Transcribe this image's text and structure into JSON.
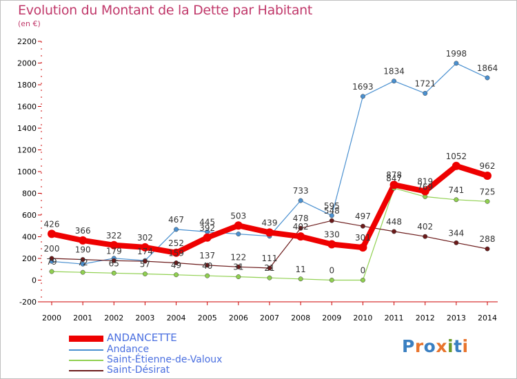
{
  "header": {
    "title": "Evolution du Montant de la Dette par Habitant",
    "subtitle": "(en €)"
  },
  "logo": {
    "text": "Proxiti",
    "colors": [
      "#3a7fc1",
      "#e8742c",
      "#3a7fc1",
      "#e8742c",
      "#6b9a2a",
      "#3a7fc1",
      "#e8742c"
    ]
  },
  "chart_data": {
    "type": "line",
    "title": "Evolution du Montant de la Dette par Habitant",
    "ylabel": "(en €)",
    "xlabel": "",
    "x": [
      "2000",
      "2001",
      "2002",
      "2003",
      "2004",
      "2005",
      "2006",
      "2007",
      "2008",
      "2009",
      "2010",
      "2011",
      "2012",
      "2013",
      "2014"
    ],
    "ylim": [
      -200,
      2200
    ],
    "yticks": [
      -200,
      0,
      200,
      400,
      600,
      800,
      1000,
      1200,
      1400,
      1600,
      1800,
      2000,
      2200
    ],
    "grid": false,
    "legend_position": "bottom-left",
    "series": [
      {
        "name": "ANDANCETTE",
        "color": "#ee0000",
        "values": [
          426,
          366,
          322,
          302,
          252,
          392,
          503,
          439,
          402,
          330,
          301,
          878,
          819,
          1052,
          962
        ],
        "labels": [
          "426",
          "366",
          "322",
          "302",
          "252",
          "392",
          "503",
          "439",
          "402",
          "330",
          "301",
          "878",
          "819",
          "1052",
          "962"
        ]
      },
      {
        "name": "Andance",
        "color": "#4a90d0",
        "values": [
          173,
          148,
          201,
          180,
          467,
          445,
          425,
          405,
          733,
          595,
          1693,
          1834,
          1721,
          1998,
          1864
        ],
        "labels": [
          "",
          "",
          "",
          "",
          "467",
          "445",
          "",
          "",
          "733",
          "595",
          "1693",
          "1834",
          "1721",
          "1998",
          "1864"
        ]
      },
      {
        "name": "Saint-Étienne-de-Valoux",
        "color": "#90d050",
        "values": [
          79,
          72,
          65,
          57,
          49,
          40,
          31,
          21,
          11,
          0,
          0,
          847,
          769,
          741,
          725
        ],
        "labels": [
          "79",
          "72",
          "65",
          "57",
          "49",
          "40",
          "31",
          "21",
          "11",
          "0",
          "0",
          "847",
          "769",
          "741",
          "725"
        ]
      },
      {
        "name": "Saint-Désirat",
        "color": "#6b1a1a",
        "values": [
          200,
          190,
          179,
          174,
          159,
          137,
          122,
          111,
          478,
          548,
          497,
          448,
          402,
          344,
          288
        ],
        "labels": [
          "200",
          "190",
          "179",
          "174",
          "159",
          "137",
          "122",
          "111",
          "478",
          "548",
          "497",
          "448",
          "402",
          "344",
          "288"
        ]
      }
    ]
  }
}
